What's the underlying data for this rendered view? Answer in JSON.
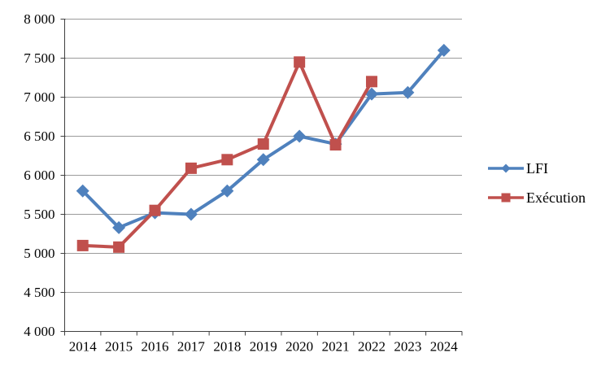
{
  "chart_data": {
    "type": "line",
    "title": "",
    "xlabel": "",
    "ylabel": "",
    "categories": [
      "2014",
      "2015",
      "2016",
      "2017",
      "2018",
      "2019",
      "2020",
      "2021",
      "2022",
      "2023",
      "2024"
    ],
    "series": [
      {
        "name": "LFI",
        "color": "#4F81BD",
        "marker": "diamond",
        "values": [
          5800,
          5330,
          5520,
          5500,
          5800,
          6200,
          6500,
          6400,
          7040,
          7060,
          7600
        ]
      },
      {
        "name": "Exécution",
        "color": "#C0504D",
        "marker": "square",
        "values": [
          5100,
          5080,
          5550,
          6090,
          6200,
          6400,
          7450,
          6390,
          7200,
          null,
          null
        ]
      }
    ],
    "ylim": [
      4000,
      8000
    ],
    "ytick_step": 500,
    "ytick_labels": [
      "4 000",
      "4 500",
      "5 000",
      "5 500",
      "6 000",
      "6 500",
      "7 000",
      "7 500",
      "8 000"
    ],
    "grid": true,
    "legend_position": "right"
  },
  "styles": {
    "background": "#FFFFFF",
    "gridline_color": "#9B9B9B",
    "axis_color": "#404040",
    "text_color": "#000000",
    "axis_font_size": 17,
    "legend_font_size": 18
  }
}
